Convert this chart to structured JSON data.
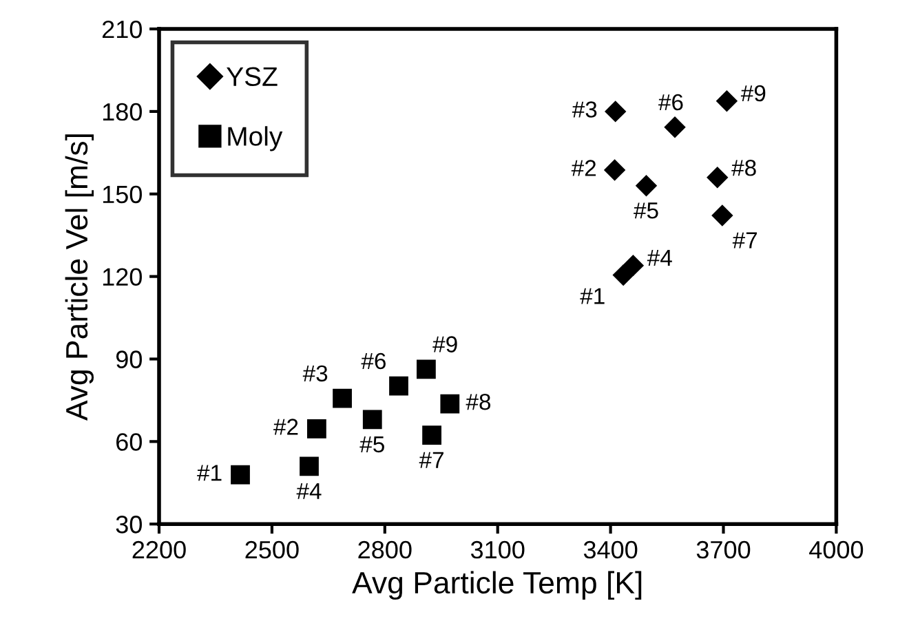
{
  "chart_data": {
    "type": "scatter",
    "xlabel": "Avg Particle Temp [K]",
    "ylabel": "Avg Particle Vel [m/s]",
    "xlim": [
      2200,
      4000
    ],
    "xticks": [
      2200,
      2500,
      2800,
      3100,
      3400,
      3700,
      4000
    ],
    "ylim": [
      30,
      210
    ],
    "yticks": [
      30,
      60,
      90,
      120,
      150,
      180,
      210
    ],
    "grid": false,
    "legend": "top left",
    "series": [
      {
        "name": "YSZ",
        "color": "#000000",
        "marker": "diamond",
        "x": [
          3434,
          3411,
          3413,
          3460,
          3495,
          3571,
          3697,
          3684,
          3709
        ],
        "values": [
          120.5,
          158.7,
          180,
          124,
          153,
          174.3,
          142.2,
          156,
          183.8
        ]
      },
      {
        "name": "Moly",
        "color": "#000000",
        "marker": "square",
        "x": [
          2416,
          2619,
          2687,
          2599,
          2767,
          2837,
          2925,
          2973,
          2910
        ],
        "values": [
          47.9,
          64.6,
          75.7,
          51,
          68,
          80.2,
          62.3,
          73.7,
          86.3
        ]
      }
    ],
    "annotations": [
      {
        "text": "#1",
        "x": 3434,
        "y": 120.5
      },
      {
        "text": "#2",
        "x": 3411,
        "y": 158.7
      },
      {
        "text": "#3",
        "x": 3413,
        "y": 180
      },
      {
        "text": "#4",
        "x": 3460,
        "y": 124
      },
      {
        "text": "#5",
        "x": 3495,
        "y": 153
      },
      {
        "text": "#6",
        "x": 3571,
        "y": 174.3
      },
      {
        "text": "#7",
        "x": 3697,
        "y": 142.2
      },
      {
        "text": "#8",
        "x": 3684,
        "y": 156
      },
      {
        "text": "#9",
        "x": 3709,
        "y": 183.8
      },
      {
        "text": "#1",
        "x": 2416,
        "y": 47.9
      },
      {
        "text": "#2",
        "x": 2619,
        "y": 64.6
      },
      {
        "text": "#3",
        "x": 2687,
        "y": 75.7
      },
      {
        "text": "#4",
        "x": 2599,
        "y": 51
      },
      {
        "text": "#5",
        "x": 2767,
        "y": 68
      },
      {
        "text": "#6",
        "x": 2837,
        "y": 80.2
      },
      {
        "text": "#7",
        "x": 2925,
        "y": 62.3
      },
      {
        "text": "#8",
        "x": 2973,
        "y": 73.7
      },
      {
        "text": "#9",
        "x": 2910,
        "y": 86.3
      }
    ]
  }
}
